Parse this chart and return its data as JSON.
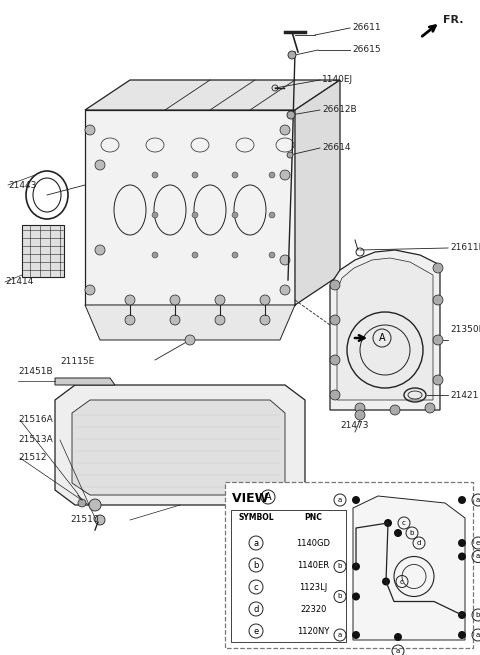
{
  "bg_color": "#ffffff",
  "line_color": "#222222",
  "label_color": "#000000",
  "view_a_table": {
    "symbols": [
      "a",
      "b",
      "c",
      "d",
      "e"
    ],
    "pncs": [
      "1140GD",
      "1140ER",
      "1123LJ",
      "22320",
      "1120NY"
    ]
  }
}
